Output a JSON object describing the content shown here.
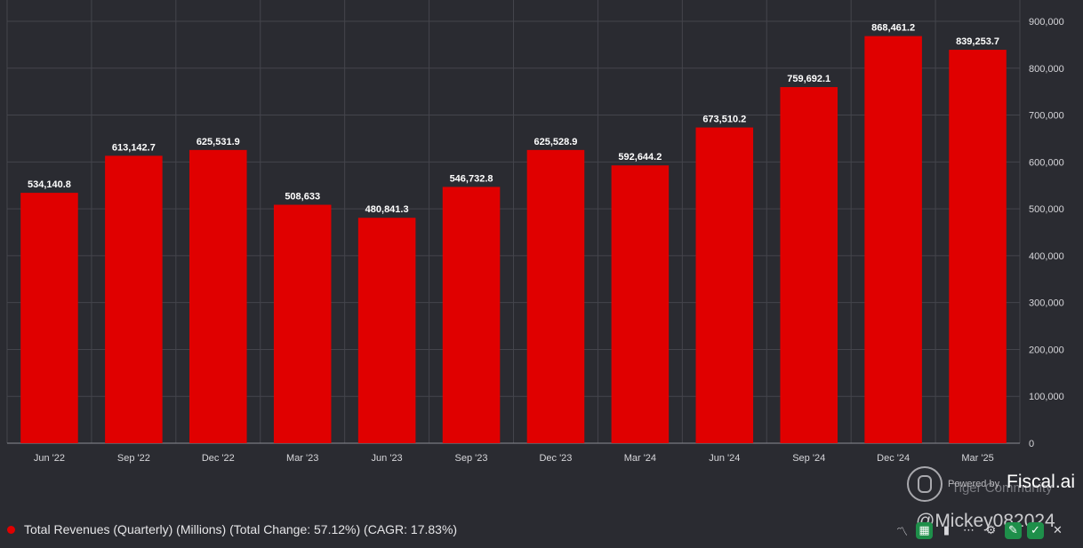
{
  "chart_data": {
    "type": "bar",
    "categories": [
      "Jun '22",
      "Sep '22",
      "Dec '22",
      "Mar '23",
      "Jun '23",
      "Sep '23",
      "Dec '23",
      "Mar '24",
      "Jun '24",
      "Sep '24",
      "Dec '24",
      "Mar '25"
    ],
    "values": [
      534140.8,
      613142.7,
      625531.9,
      508633,
      480841.3,
      546732.8,
      625528.9,
      592644.2,
      673510.2,
      759692.1,
      868461.2,
      839253.7
    ],
    "value_labels": [
      "534,140.8",
      "613,142.7",
      "625,531.9",
      "508,633",
      "480,841.3",
      "546,732.8",
      "625,528.9",
      "592,644.2",
      "673,510.2",
      "759,692.1",
      "868,461.2",
      "839,253.7"
    ],
    "yticks": [
      "0",
      "100,000",
      "200,000",
      "300,000",
      "400,000",
      "500,000",
      "600,000",
      "700,000",
      "800,000",
      "900,000"
    ],
    "ylim": [
      0,
      900000
    ],
    "y_axis_side": "right",
    "grid": true,
    "bar_color": "#e00000",
    "background": "#2a2b31",
    "legend": {
      "label": "Total Revenues (Quarterly) (Millions) (Total Change: 57.12%) (CAGR: 17.83%)",
      "color": "#e00000",
      "position": "bottom-left"
    }
  },
  "branding": {
    "powered_by": "Powered by",
    "community": "Tiger Community",
    "name": "Fiscal.ai",
    "watermark": "@Mickey082024"
  },
  "toolbar": {
    "icons": [
      "line-chart-icon",
      "excel-icon",
      "bar-chart-icon",
      "more-icon",
      "gear-icon",
      "pin-icon",
      "check-icon",
      "close-icon"
    ]
  }
}
